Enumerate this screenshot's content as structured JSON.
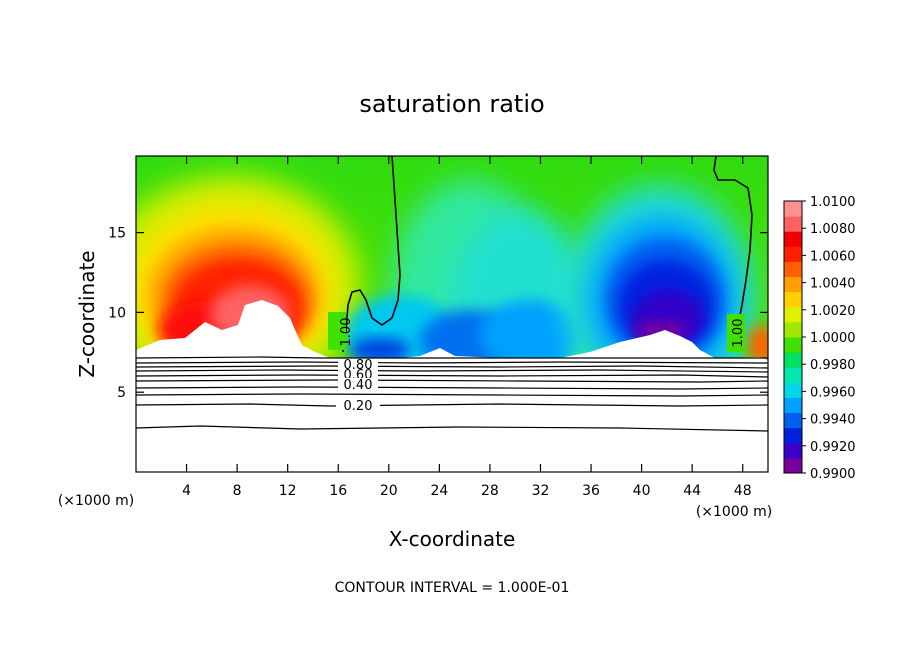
{
  "chart_data": {
    "type": "heatmap",
    "title": "saturation ratio",
    "xlabel": "X-coordinate",
    "ylabel": "Z-coordinate",
    "x_unit_left": "(×1000 m)",
    "x_unit_right": "(×1000 m)",
    "footer": "CONTOUR INTERVAL = 1.000E-01",
    "xlim": [
      0,
      50
    ],
    "ylim": [
      0,
      19.8
    ],
    "x_ticks": [
      4,
      8,
      12,
      16,
      20,
      24,
      28,
      32,
      36,
      40,
      44,
      48
    ],
    "y_ticks": [
      5,
      10,
      15
    ],
    "colorbar": {
      "min": 0.99,
      "max": 1.01,
      "labels": [
        "1.0100",
        "1.0080",
        "1.0060",
        "1.0040",
        "1.0020",
        "1.0000",
        "0.9980",
        "0.9960",
        "0.9940",
        "0.9920",
        "0.9900"
      ],
      "colors": [
        "#7a009e",
        "#3a00c8",
        "#0020e0",
        "#0060f0",
        "#00a0ff",
        "#00d8e8",
        "#00e8b0",
        "#00e060",
        "#40e000",
        "#a0e800",
        "#e0f000",
        "#ffd000",
        "#ffa000",
        "#ff6000",
        "#ff2000",
        "#f00000",
        "#ff6060",
        "#ff9090"
      ]
    },
    "contour_labels": [
      "1.00",
      "1.00",
      "0.80",
      "0.60",
      "0.40",
      "0.20"
    ],
    "contour_levels": [
      0.2,
      0.3,
      0.4,
      0.5,
      0.6,
      0.7,
      0.8,
      0.9,
      1.0
    ],
    "regions": [
      {
        "name": "supersaturated-left",
        "x_center": 8.5,
        "z_center": 11.5,
        "peak_ratio": 1.0075
      },
      {
        "name": "subsaturated-right",
        "x_center": 42,
        "z_center": 9.5,
        "min_ratio": 0.9905
      },
      {
        "name": "subsaturated-center",
        "x_center": 26,
        "z_center": 9,
        "min_ratio": 0.9935
      }
    ]
  }
}
